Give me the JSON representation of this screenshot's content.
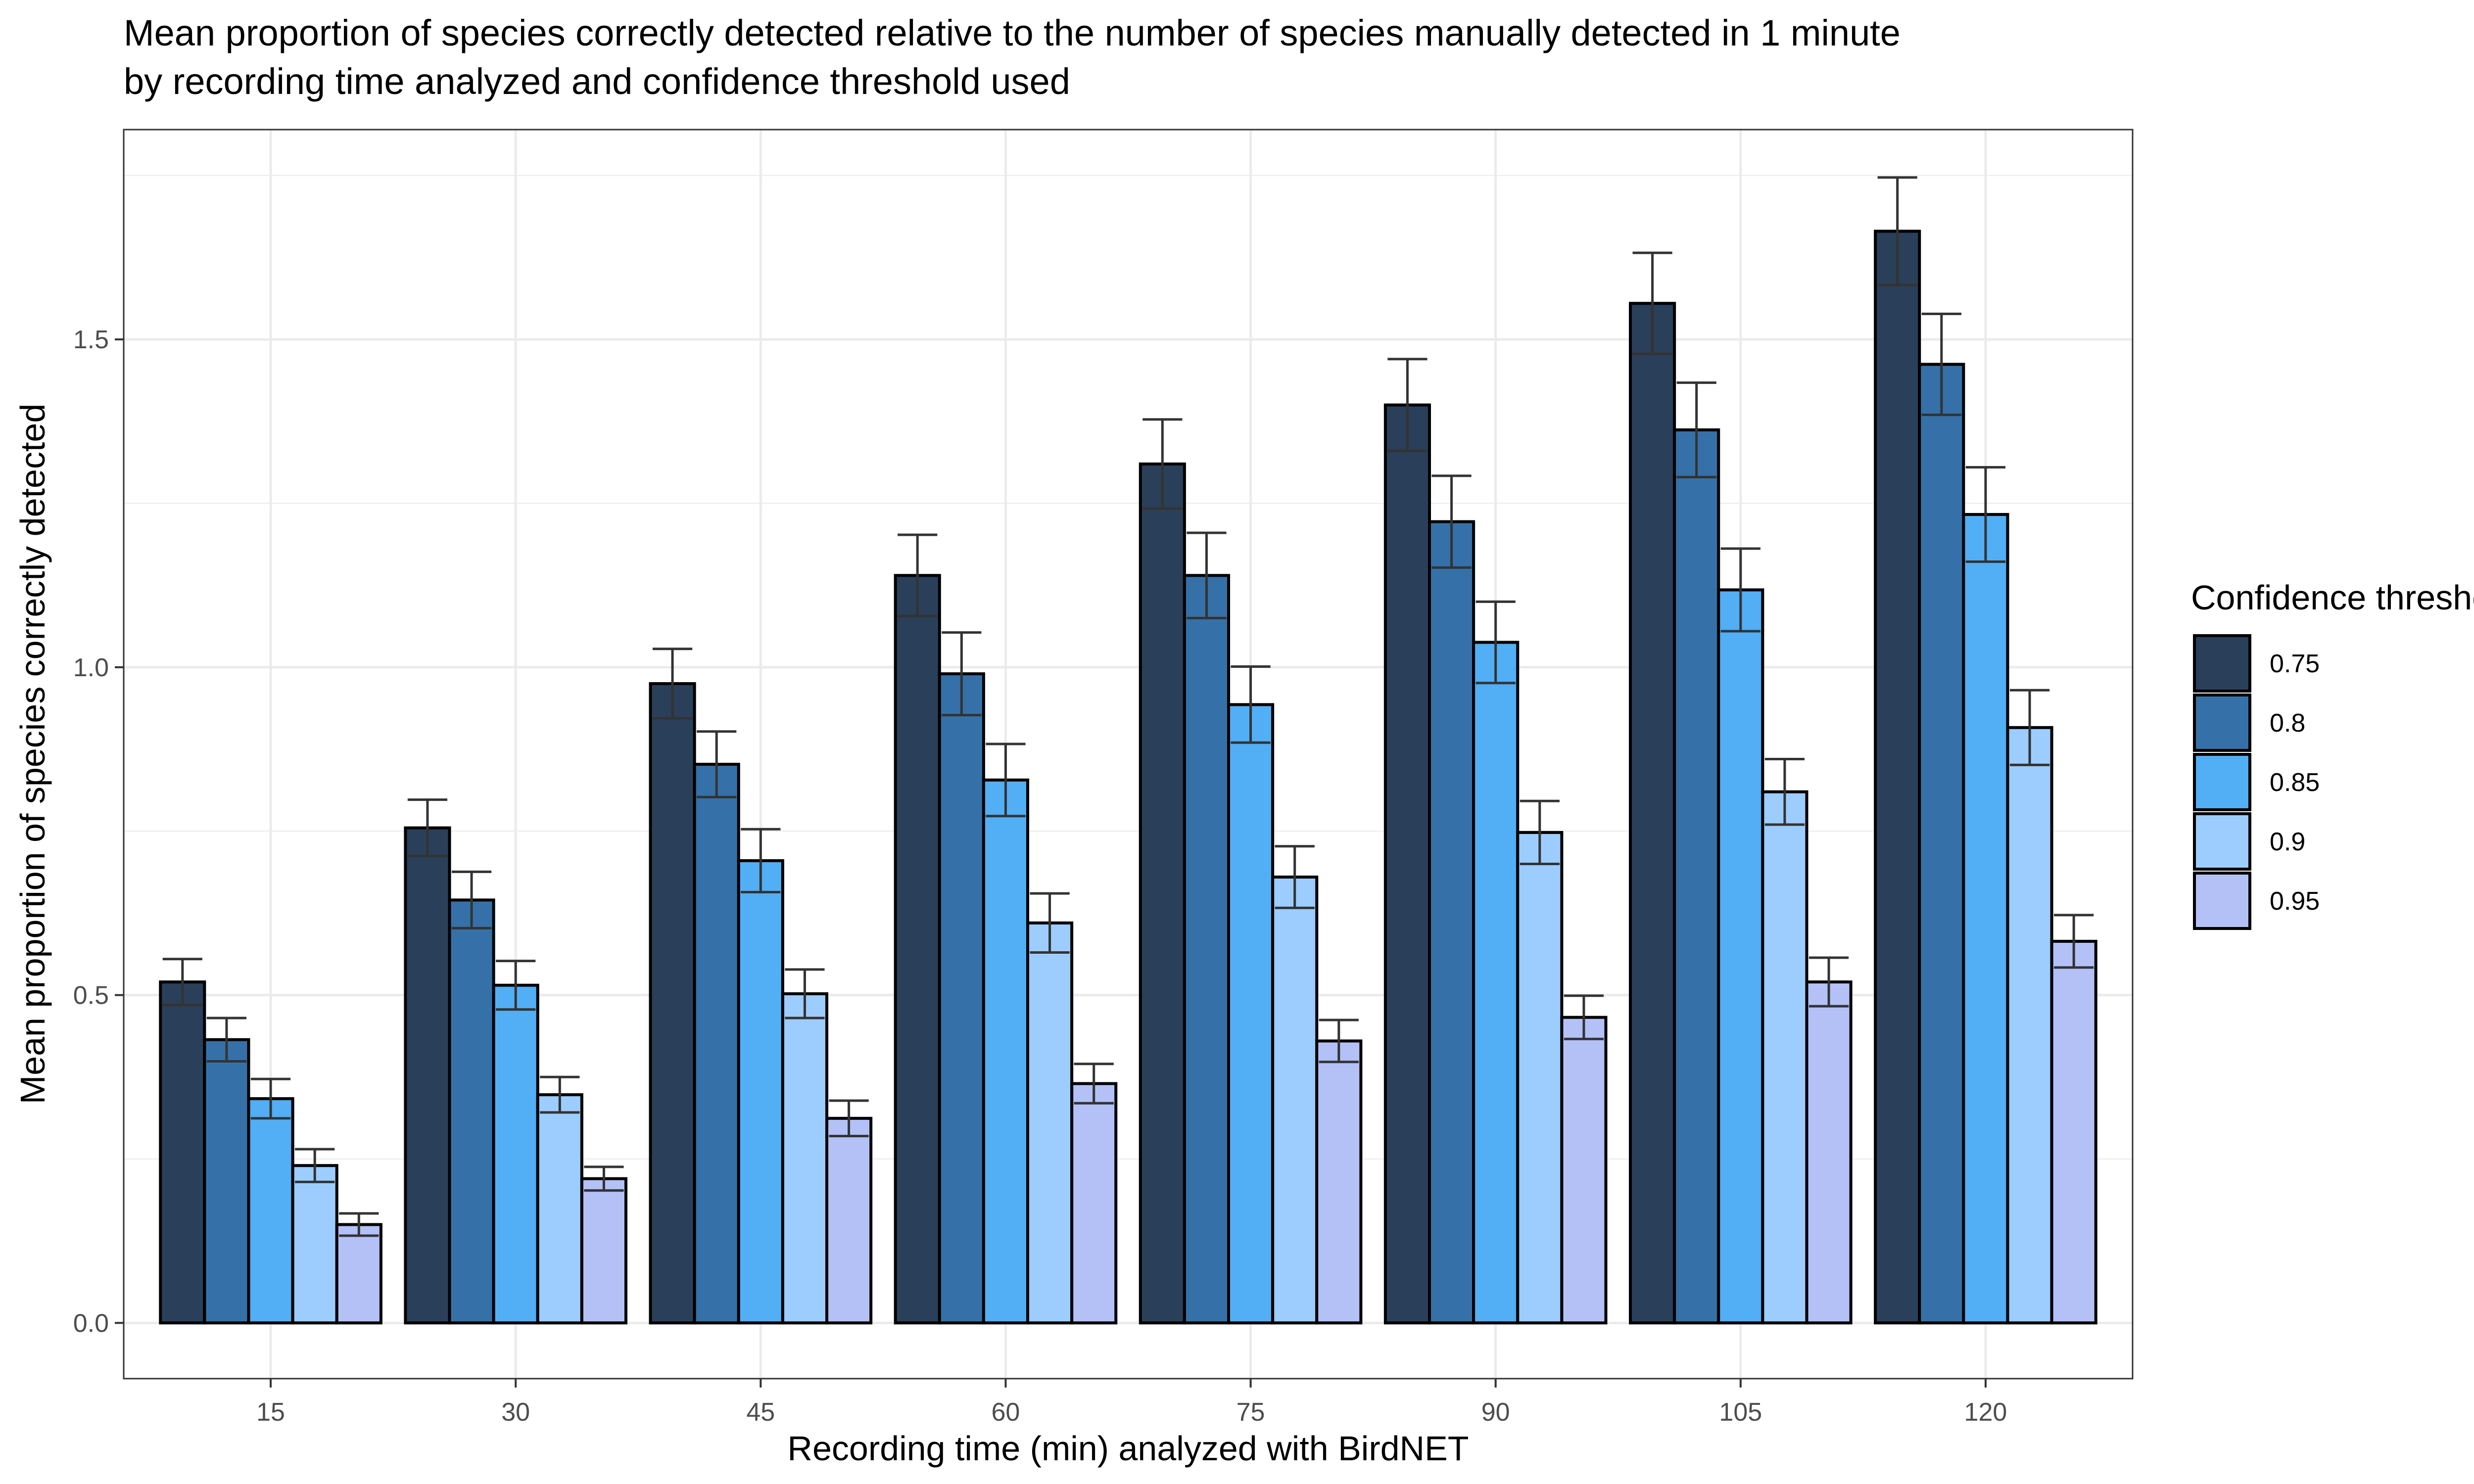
{
  "chart_data": {
    "type": "bar",
    "title_lines": [
      "Mean proportion of species correctly detected relative to the number of species manually detected in 1 minute",
      "by recording time analyzed and confidence threshold used"
    ],
    "xlabel": "Recording time (min) analyzed with BirdNET",
    "ylabel": "Mean proportion of species correctly detected",
    "categories": [
      "15",
      "30",
      "45",
      "60",
      "75",
      "90",
      "105",
      "120"
    ],
    "ylim": [
      -0.085,
      1.82
    ],
    "y_ticks": [
      0.0,
      0.5,
      1.0,
      1.5
    ],
    "y_tick_labels": [
      "0.0",
      "0.5",
      "1.0",
      "1.5"
    ],
    "grid": true,
    "legend": {
      "title": "Confidence threshold",
      "placement": "right"
    },
    "series": [
      {
        "name": "0.75",
        "color": "#2a3f5a",
        "values": [
          0.52,
          0.755,
          0.975,
          1.14,
          1.31,
          1.4,
          1.555,
          1.665
        ],
        "errors": [
          0.035,
          0.043,
          0.053,
          0.062,
          0.068,
          0.07,
          0.077,
          0.082
        ]
      },
      {
        "name": "0.8",
        "color": "#3571a8",
        "values": [
          0.432,
          0.645,
          0.852,
          0.99,
          1.14,
          1.222,
          1.362,
          1.462
        ],
        "errors": [
          0.033,
          0.043,
          0.05,
          0.063,
          0.065,
          0.07,
          0.072,
          0.077
        ]
      },
      {
        "name": "0.85",
        "color": "#52aef5",
        "values": [
          0.342,
          0.515,
          0.705,
          0.828,
          0.943,
          1.038,
          1.118,
          1.233
        ],
        "errors": [
          0.03,
          0.037,
          0.048,
          0.055,
          0.058,
          0.062,
          0.063,
          0.072
        ]
      },
      {
        "name": "0.9",
        "color": "#9ccdfe",
        "values": [
          0.24,
          0.348,
          0.502,
          0.61,
          0.68,
          0.748,
          0.81,
          0.908
        ],
        "errors": [
          0.025,
          0.027,
          0.037,
          0.045,
          0.047,
          0.048,
          0.05,
          0.057
        ]
      },
      {
        "name": "0.95",
        "color": "#b3c1f7",
        "values": [
          0.15,
          0.22,
          0.312,
          0.365,
          0.43,
          0.466,
          0.52,
          0.582
        ],
        "errors": [
          0.017,
          0.018,
          0.027,
          0.03,
          0.032,
          0.033,
          0.037,
          0.04
        ]
      }
    ],
    "panel_background": "#ffffff",
    "grid_color": "#ebebeb",
    "bar_outline": "#000000",
    "errorbar_color": "#333333"
  }
}
